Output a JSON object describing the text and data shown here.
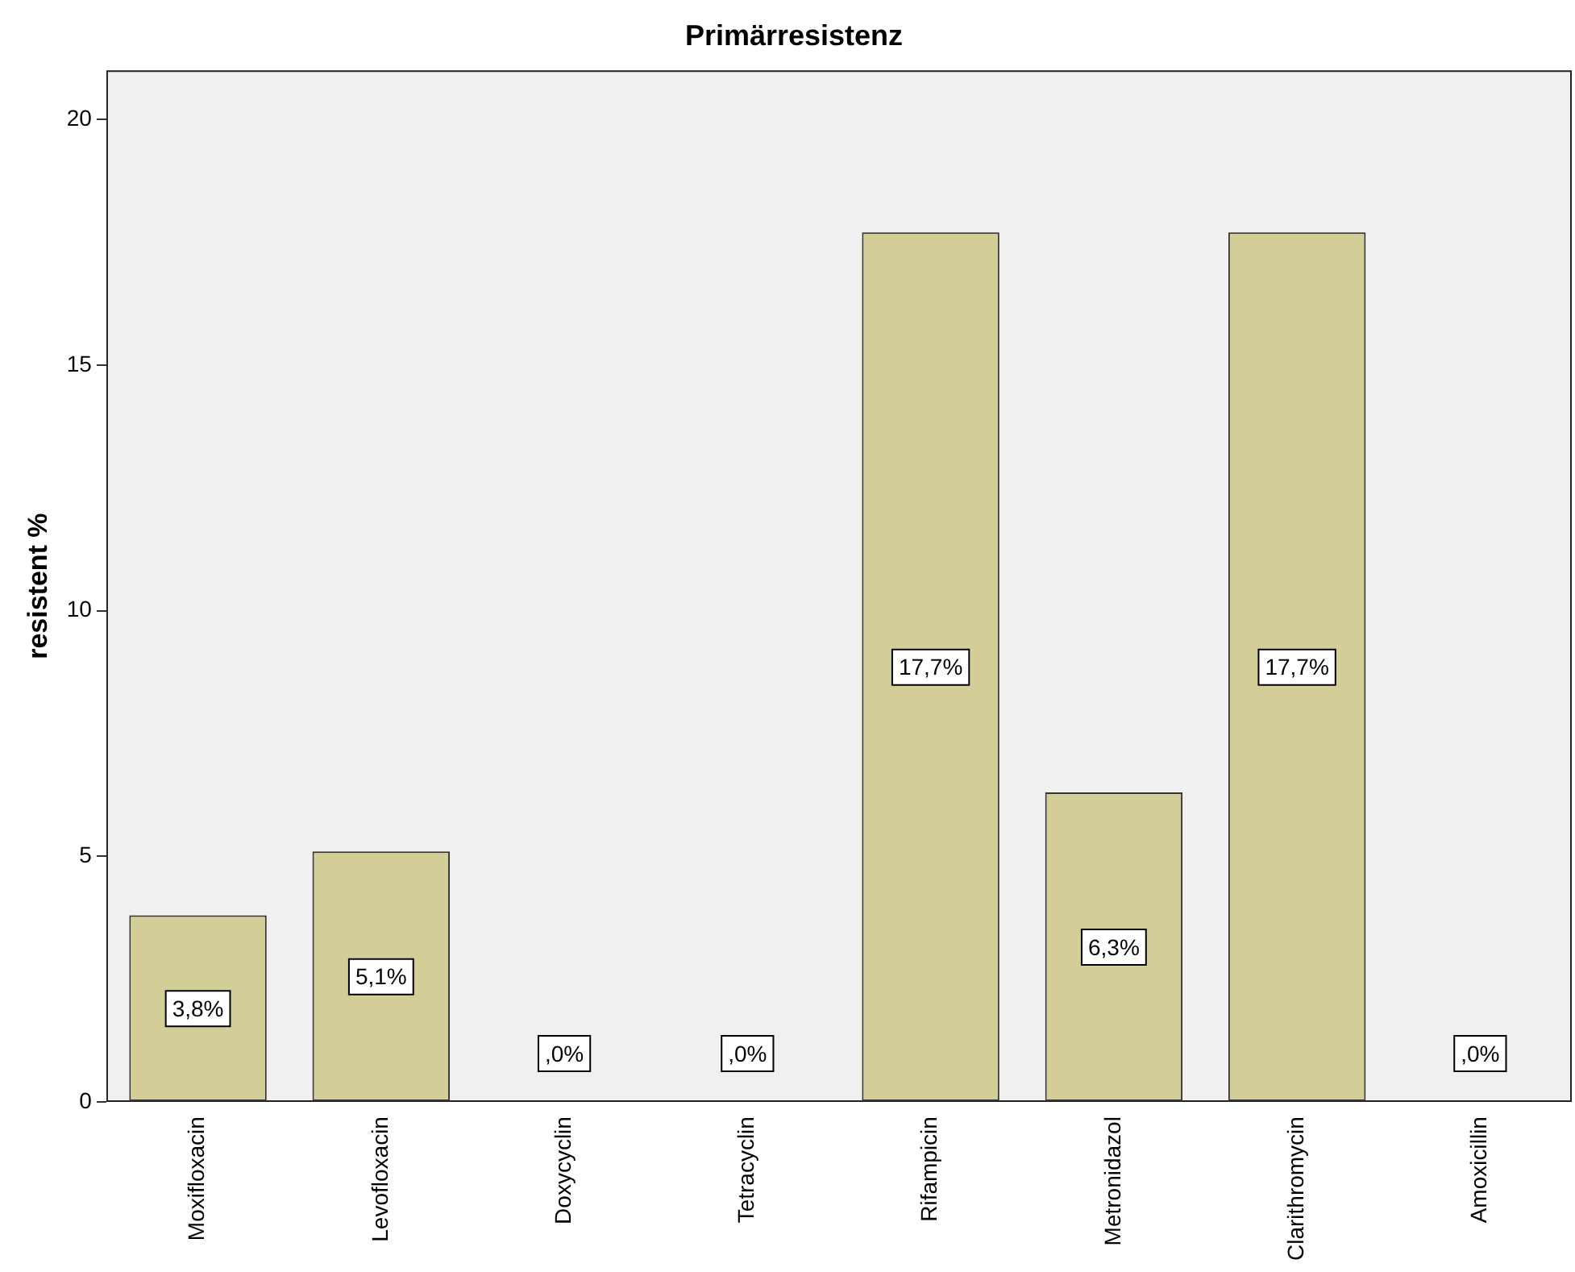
{
  "chart_data": {
    "type": "bar",
    "title": "Primärresistenz",
    "ylabel": "resistent %",
    "categories": [
      "Moxifloxacin",
      "Levofloxacin",
      "Doxycyclin",
      "Tetracyclin",
      "Rifampicin",
      "Metronidazol",
      "Clarithromycin",
      "Amoxicillin"
    ],
    "values": [
      3.8,
      5.1,
      0,
      0,
      17.7,
      6.3,
      17.7,
      0
    ],
    "value_labels": [
      "3,8%",
      "5,1%",
      ",0%",
      ",0%",
      "17,7%",
      "6,3%",
      "17,7%",
      ",0%"
    ],
    "color": "#d3ce97",
    "ylim": [
      0,
      21
    ],
    "yticks": [
      0,
      5,
      10,
      15,
      20
    ],
    "grid": false,
    "legend": false
  }
}
